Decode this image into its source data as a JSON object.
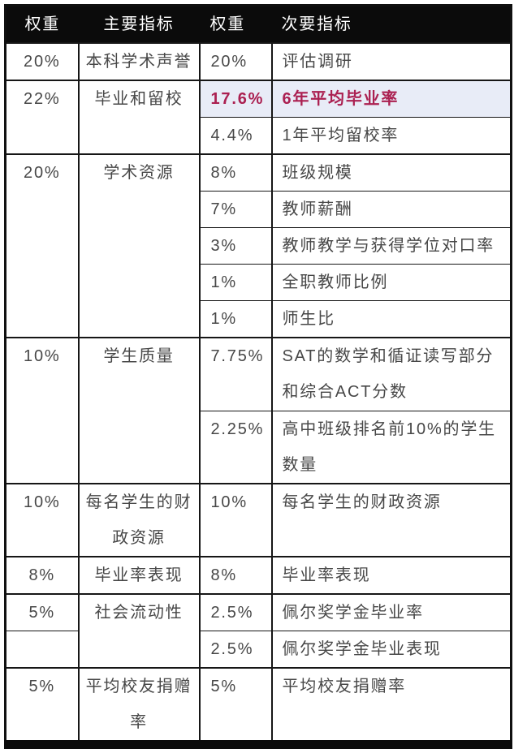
{
  "colors": {
    "header_bg": "#0b0b0b",
    "header_text": "#ffffff",
    "body_text": "#474747",
    "border": "#161616",
    "highlight_text": "#ab2051",
    "highlight_bg": "#e8ecf7"
  },
  "table": {
    "header": [
      "权重",
      "主要指标",
      "权重",
      "次要指标"
    ],
    "rows": [
      {
        "w1": "20%",
        "p": "本科学术声誉",
        "w2": "20%",
        "s": "评估调研"
      },
      {
        "w1": "22%",
        "p": "毕业和留校",
        "w2": "17.6%",
        "s": "6年平均毕业率",
        "highlight": true
      },
      {
        "w2": "4.4%",
        "s": "1年平均留校率"
      },
      {
        "w1": "20%",
        "p": "学术资源",
        "w2": "8%",
        "s": "班级规模"
      },
      {
        "w2": "7%",
        "s": "教师薪酬"
      },
      {
        "w2": "3%",
        "s": "教师教学与获得学位对口率"
      },
      {
        "w2": "1%",
        "s": "全职教师比例"
      },
      {
        "w2": "1%",
        "s": "师生比"
      },
      {
        "w1": "10%",
        "p": "学生质量",
        "w2": "7.75%",
        "s": "SAT的数学和循证读写部分和综合ACT分数"
      },
      {
        "w2": "2.25%",
        "s": "高中班级排名前10%的学生数量"
      },
      {
        "w1": "10%",
        "p": "每名学生的财政资源",
        "w2": "10%",
        "s": "每名学生的财政资源"
      },
      {
        "w1": "8%",
        "p": "毕业率表现",
        "w2": "8%",
        "s": "毕业率表现"
      },
      {
        "w1": "5%",
        "p": "社会流动性",
        "w2": "2.5%",
        "s": "佩尔奖学金毕业率"
      },
      {
        "w1": "",
        "w2": "2.5%",
        "s": "佩尔奖学金毕业表现"
      },
      {
        "w1": "5%",
        "p": "平均校友捐赠率",
        "w2": "5%",
        "s": "平均校友捐赠率"
      }
    ]
  }
}
